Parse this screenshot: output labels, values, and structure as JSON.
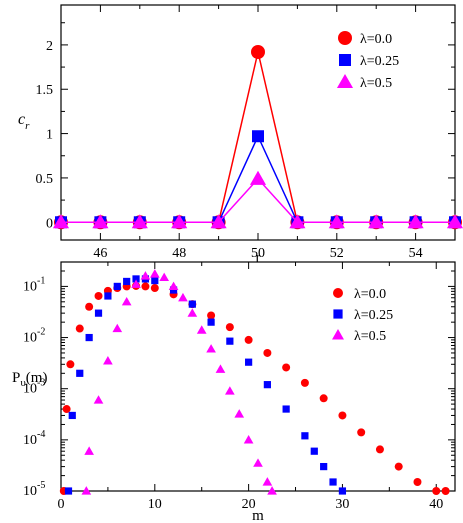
{
  "colors": {
    "red": "#ff0000",
    "blue": "#0000ff",
    "magenta": "#ff00ff"
  },
  "chart_data": [
    {
      "type": "line",
      "xlabel": "r",
      "ylabel": "c",
      "ylabel_sub": "r",
      "xlim": [
        45,
        55
      ],
      "ylim": [
        -0.2,
        2.45
      ],
      "xticks": [
        "46",
        "48",
        "50",
        "52",
        "54"
      ],
      "yticks": [
        "0",
        "0.5",
        "1",
        "1.5",
        "2"
      ],
      "legend_position": "top-right",
      "x": [
        45,
        46,
        47,
        48,
        49,
        50,
        51,
        52,
        53,
        54,
        55
      ],
      "series": [
        {
          "name": "λ=0.0",
          "color": "#ff0000",
          "marker": "circle",
          "values": [
            0,
            0,
            0,
            0,
            0,
            1.92,
            0,
            0,
            0,
            0,
            0
          ]
        },
        {
          "name": "λ=0.25",
          "color": "#0000ff",
          "marker": "square",
          "values": [
            0,
            0,
            0,
            0,
            0,
            0.97,
            0,
            0,
            0,
            0,
            0
          ]
        },
        {
          "name": "λ=0.5",
          "color": "#ff00ff",
          "marker": "triangle",
          "values": [
            0,
            0,
            0,
            0,
            0,
            0.49,
            0,
            0,
            0,
            0,
            0
          ]
        }
      ]
    },
    {
      "type": "scatter",
      "xlabel": "m",
      "ylabel": "P",
      "ylabel_sub": "υ",
      "ylabel_suffix": "(m)",
      "xlim": [
        0,
        42
      ],
      "ylim": [
        1e-05,
        0.3
      ],
      "yscale": "log",
      "xticks": [
        "0",
        "10",
        "20",
        "30",
        "40"
      ],
      "yticks": [
        {
          "base": "10",
          "exp": "-5"
        },
        {
          "base": "10",
          "exp": "-4"
        },
        {
          "base": "10",
          "exp": "-3"
        },
        {
          "base": "10",
          "exp": "-2"
        },
        {
          "base": "10",
          "exp": "-1"
        }
      ],
      "legend_position": "top-right",
      "series": [
        {
          "name": "λ=0.0",
          "color": "#ff0000",
          "marker": "circle",
          "points": [
            [
              0.3,
              1e-05
            ],
            [
              0.6,
              0.0004
            ],
            [
              1,
              0.003
            ],
            [
              2,
              0.015
            ],
            [
              3,
              0.04
            ],
            [
              4,
              0.065
            ],
            [
              5,
              0.082
            ],
            [
              6,
              0.093
            ],
            [
              7,
              0.1
            ],
            [
              8,
              0.102
            ],
            [
              9,
              0.1
            ],
            [
              10,
              0.093
            ],
            [
              12,
              0.07
            ],
            [
              14,
              0.045
            ],
            [
              16,
              0.027
            ],
            [
              18,
              0.016
            ],
            [
              20,
              0.009
            ],
            [
              22,
              0.005
            ],
            [
              24,
              0.0026
            ],
            [
              26,
              0.0013
            ],
            [
              28,
              0.00065
            ],
            [
              30,
              0.0003
            ],
            [
              32,
              0.00014
            ],
            [
              34,
              6.5e-05
            ],
            [
              36,
              3e-05
            ],
            [
              38,
              1.5e-05
            ],
            [
              40,
              1e-05
            ],
            [
              41,
              1e-05
            ]
          ]
        },
        {
          "name": "λ=0.25",
          "color": "#0000ff",
          "marker": "square",
          "points": [
            [
              0.8,
              1e-05
            ],
            [
              1.2,
              0.0003
            ],
            [
              2,
              0.002
            ],
            [
              3,
              0.01
            ],
            [
              4,
              0.03
            ],
            [
              5,
              0.065
            ],
            [
              6,
              0.1
            ],
            [
              7,
              0.125
            ],
            [
              8,
              0.14
            ],
            [
              9,
              0.14
            ],
            [
              10,
              0.13
            ],
            [
              12,
              0.085
            ],
            [
              14,
              0.045
            ],
            [
              16,
              0.02
            ],
            [
              18,
              0.0085
            ],
            [
              20,
              0.0033
            ],
            [
              22,
              0.0012
            ],
            [
              24,
              0.0004
            ],
            [
              26,
              0.00012
            ],
            [
              27,
              6e-05
            ],
            [
              28,
              3e-05
            ],
            [
              29,
              1.5e-05
            ],
            [
              30,
              1e-05
            ]
          ]
        },
        {
          "name": "λ=0.5",
          "color": "#ff00ff",
          "marker": "triangle",
          "points": [
            [
              2.7,
              1e-05
            ],
            [
              3,
              6e-05
            ],
            [
              4,
              0.0006
            ],
            [
              5,
              0.0035
            ],
            [
              6,
              0.015
            ],
            [
              7,
              0.05
            ],
            [
              8,
              0.11
            ],
            [
              9,
              0.16
            ],
            [
              10,
              0.175
            ],
            [
              11,
              0.15
            ],
            [
              12,
              0.1
            ],
            [
              13,
              0.06
            ],
            [
              14,
              0.03
            ],
            [
              15,
              0.014
            ],
            [
              16,
              0.006
            ],
            [
              17,
              0.0024
            ],
            [
              18,
              0.0009
            ],
            [
              19,
              0.00032
            ],
            [
              20,
              0.0001
            ],
            [
              21,
              3.5e-05
            ],
            [
              22,
              1.5e-05
            ],
            [
              22.5,
              1e-05
            ]
          ]
        }
      ]
    }
  ]
}
